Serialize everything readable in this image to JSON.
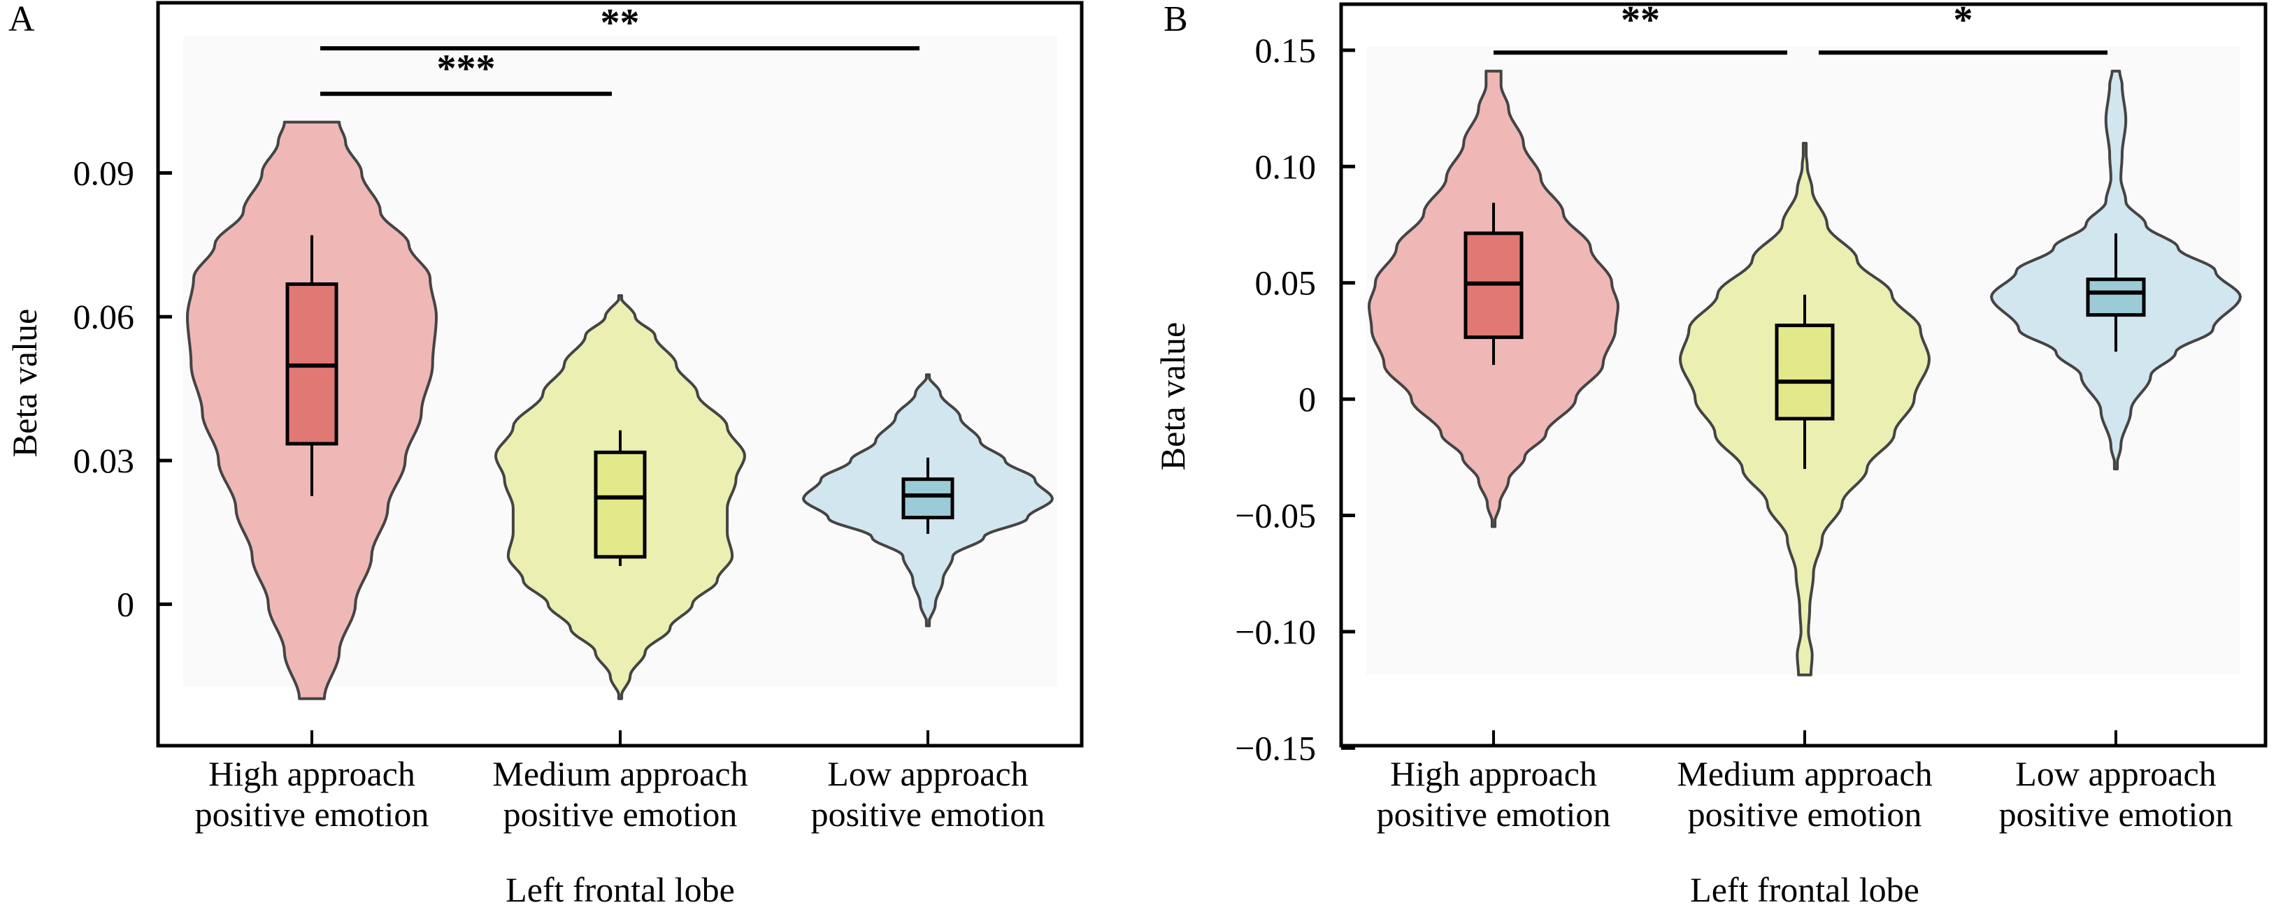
{
  "chart_data": [
    {
      "type": "violin",
      "panel_label": "A",
      "title": "",
      "xlabel": "Left frontal lobe",
      "ylabel": "Beta value",
      "ylim": [
        -0.0295,
        0.1255
      ],
      "yticks": [
        0,
        0.03,
        0.06,
        0.09
      ],
      "ytick_labels": [
        "0",
        "0.03",
        "0.06",
        "0.09"
      ],
      "grid": false,
      "categories": [
        [
          "High approach",
          "positive emotion"
        ],
        [
          "Medium approach",
          "positive emotion"
        ],
        [
          "Low approach",
          "positive emotion"
        ]
      ],
      "series": [
        {
          "name": "High approach positive emotion",
          "fill": "#efb8b6",
          "box_fill": "#e07874",
          "violin": {
            "min": -0.0197,
            "max": 0.1006,
            "density": [
              [
                -0.0197,
                0.1
              ],
              [
                -0.01,
                0.22
              ],
              [
                0.0,
                0.35
              ],
              [
                0.01,
                0.48
              ],
              [
                0.02,
                0.61
              ],
              [
                0.03,
                0.75
              ],
              [
                0.04,
                0.88
              ],
              [
                0.05,
                0.97
              ],
              [
                0.06,
                1.0
              ],
              [
                0.068,
                0.95
              ],
              [
                0.075,
                0.78
              ],
              [
                0.082,
                0.55
              ],
              [
                0.09,
                0.4
              ],
              [
                0.0965,
                0.27
              ],
              [
                0.1006,
                0.22
              ]
            ]
          },
          "box": {
            "whisker_low": 0.0226,
            "q1": 0.0335,
            "median": 0.0498,
            "q3": 0.0668,
            "whisker_high": 0.077
          }
        },
        {
          "name": "Medium approach positive emotion",
          "fill": "#ebefb1",
          "box_fill": "#e3e88a",
          "violin": {
            "min": -0.0197,
            "max": 0.0644,
            "density": [
              [
                -0.0197,
                0.0
              ],
              [
                -0.015,
                0.08
              ],
              [
                -0.01,
                0.2
              ],
              [
                -0.005,
                0.4
              ],
              [
                0.0,
                0.58
              ],
              [
                0.005,
                0.78
              ],
              [
                0.01,
                0.9
              ],
              [
                0.015,
                0.86
              ],
              [
                0.02,
                0.86
              ],
              [
                0.026,
                0.93
              ],
              [
                0.031,
                1.0
              ],
              [
                0.037,
                0.86
              ],
              [
                0.044,
                0.62
              ],
              [
                0.05,
                0.45
              ],
              [
                0.056,
                0.28
              ],
              [
                0.06,
                0.12
              ],
              [
                0.0644,
                0.0
              ]
            ]
          },
          "box": {
            "whisker_low": 0.008,
            "q1": 0.0099,
            "median": 0.0223,
            "q3": 0.0317,
            "whisker_high": 0.0363
          }
        },
        {
          "name": "Low approach positive emotion",
          "fill": "#d1e6ef",
          "box_fill": "#9ccbd8",
          "violin": {
            "min": -0.0045,
            "max": 0.0479,
            "density": [
              [
                -0.0045,
                0.0
              ],
              [
                0.0,
                0.06
              ],
              [
                0.005,
                0.12
              ],
              [
                0.01,
                0.2
              ],
              [
                0.014,
                0.45
              ],
              [
                0.018,
                0.8
              ],
              [
                0.022,
                1.0
              ],
              [
                0.026,
                0.86
              ],
              [
                0.03,
                0.62
              ],
              [
                0.034,
                0.42
              ],
              [
                0.039,
                0.26
              ],
              [
                0.044,
                0.1
              ],
              [
                0.0479,
                0.0
              ]
            ]
          },
          "box": {
            "whisker_low": 0.0147,
            "q1": 0.0181,
            "median": 0.0227,
            "q3": 0.0261,
            "whisker_high": 0.0306
          }
        }
      ],
      "significance": [
        {
          "from": 0,
          "to": 1,
          "label": "***",
          "level": 0.1065
        },
        {
          "from": 0,
          "to": 2,
          "label": "**",
          "level": 0.116
        }
      ]
    },
    {
      "type": "violin",
      "panel_label": "B",
      "title": "",
      "xlabel": "Left frontal lobe",
      "ylabel": "Beta value",
      "ylim": [
        -0.149,
        0.1698
      ],
      "yticks": [
        -0.15,
        -0.1,
        -0.05,
        0,
        0.05,
        0.1,
        0.15
      ],
      "ytick_labels": [
        "−0.15",
        "−0.10",
        "−0.05",
        "0",
        "0.05",
        "0.10",
        "0.15"
      ],
      "grid": false,
      "categories": [
        [
          "High approach",
          "positive emotion"
        ],
        [
          "Medium approach",
          "positive emotion"
        ],
        [
          "Low approach",
          "positive emotion"
        ]
      ],
      "series": [
        {
          "name": "High approach positive emotion",
          "fill": "#efb8b6",
          "box_fill": "#e07874",
          "violin": {
            "min": -0.0548,
            "max": 0.141,
            "density": [
              [
                -0.0548,
                0.0
              ],
              [
                -0.045,
                0.05
              ],
              [
                -0.035,
                0.12
              ],
              [
                -0.025,
                0.25
              ],
              [
                -0.015,
                0.42
              ],
              [
                0.0,
                0.66
              ],
              [
                0.015,
                0.88
              ],
              [
                0.03,
                0.98
              ],
              [
                0.04,
                1.0
              ],
              [
                0.05,
                0.95
              ],
              [
                0.065,
                0.78
              ],
              [
                0.08,
                0.56
              ],
              [
                0.095,
                0.38
              ],
              [
                0.11,
                0.24
              ],
              [
                0.125,
                0.12
              ],
              [
                0.135,
                0.06
              ],
              [
                0.141,
                0.06
              ]
            ]
          },
          "box": {
            "whisker_low": 0.0147,
            "q1": 0.0266,
            "median": 0.0497,
            "q3": 0.0713,
            "whisker_high": 0.0844
          }
        },
        {
          "name": "Medium approach positive emotion",
          "fill": "#ebefb1",
          "box_fill": "#e3e88a",
          "violin": {
            "min": -0.1186,
            "max": 0.11,
            "density": [
              [
                -0.1186,
                0.05
              ],
              [
                -0.11,
                0.06
              ],
              [
                -0.1,
                0.03
              ],
              [
                -0.09,
                0.04
              ],
              [
                -0.075,
                0.07
              ],
              [
                -0.06,
                0.14
              ],
              [
                -0.045,
                0.3
              ],
              [
                -0.03,
                0.5
              ],
              [
                -0.015,
                0.72
              ],
              [
                0.0,
                0.88
              ],
              [
                0.017,
                1.0
              ],
              [
                0.03,
                0.93
              ],
              [
                0.045,
                0.7
              ],
              [
                0.06,
                0.42
              ],
              [
                0.075,
                0.18
              ],
              [
                0.09,
                0.06
              ],
              [
                0.1,
                0.02
              ],
              [
                0.11,
                0.0
              ]
            ]
          },
          "box": {
            "whisker_low": -0.03,
            "q1": -0.0084,
            "median": 0.0075,
            "q3": 0.0317,
            "whisker_high": 0.0449
          }
        },
        {
          "name": "Low approach positive emotion",
          "fill": "#d1e6ef",
          "box_fill": "#9ccbd8",
          "violin": {
            "min": -0.03,
            "max": 0.141,
            "density": [
              [
                -0.03,
                0.0
              ],
              [
                -0.02,
                0.04
              ],
              [
                -0.005,
                0.12
              ],
              [
                0.01,
                0.28
              ],
              [
                0.02,
                0.48
              ],
              [
                0.03,
                0.78
              ],
              [
                0.044,
                1.0
              ],
              [
                0.055,
                0.8
              ],
              [
                0.065,
                0.5
              ],
              [
                0.075,
                0.24
              ],
              [
                0.085,
                0.08
              ],
              [
                0.095,
                0.04
              ],
              [
                0.105,
                0.05
              ],
              [
                0.12,
                0.08
              ],
              [
                0.135,
                0.05
              ],
              [
                0.141,
                0.03
              ]
            ]
          },
          "box": {
            "whisker_low": 0.0204,
            "q1": 0.0362,
            "median": 0.0458,
            "q3": 0.0515,
            "whisker_high": 0.0713
          }
        }
      ],
      "significance": [
        {
          "from": 0,
          "to": 1,
          "label": "**",
          "level": 0.149
        },
        {
          "from": 1,
          "to": 2,
          "label": "*",
          "level": 0.149
        }
      ]
    }
  ]
}
